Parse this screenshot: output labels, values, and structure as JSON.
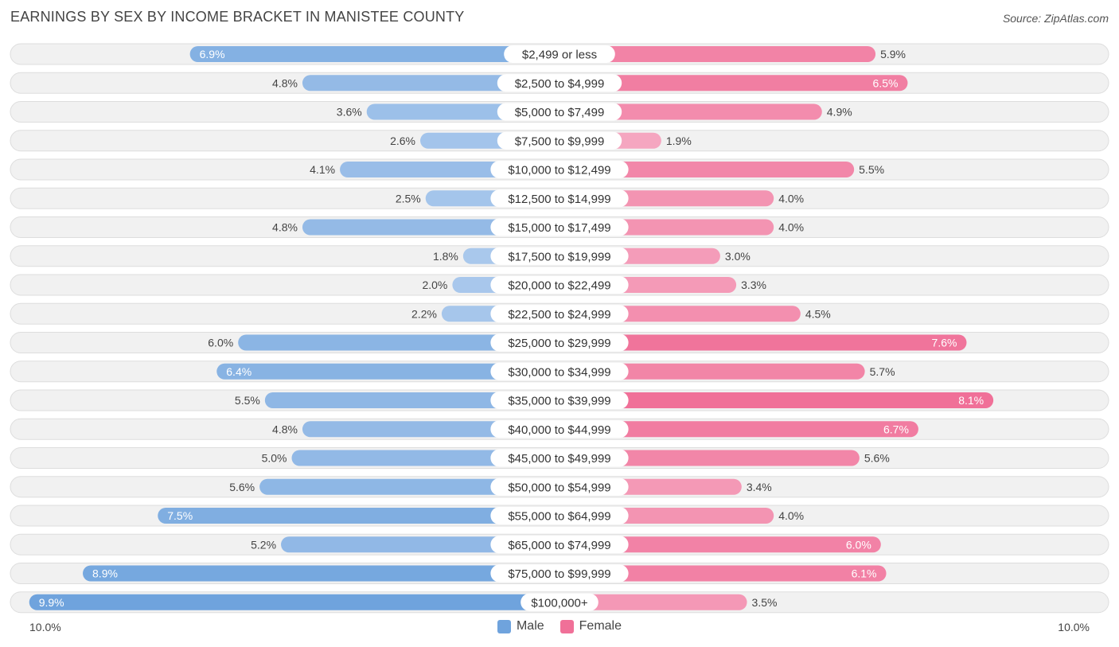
{
  "header": {
    "title": "EARNINGS BY SEX BY INCOME BRACKET IN MANISTEE COUNTY",
    "source": "Source: ZipAtlas.com"
  },
  "colors": {
    "male": "#6fa3dd",
    "male_light": "#a9c8ec",
    "female": "#f07098",
    "female_light": "#f5a6c0"
  },
  "legend": {
    "male_label": "Male",
    "female_label": "Female"
  },
  "axis": {
    "left_label": "10.0%",
    "right_label": "10.0%"
  },
  "chart_data": {
    "type": "bar",
    "orientation": "horizontal-diverging",
    "title": "EARNINGS BY SEX BY INCOME BRACKET IN MANISTEE COUNTY",
    "xlim": [
      -10,
      10
    ],
    "categories": [
      "$2,499 or less",
      "$2,500 to $4,999",
      "$5,000 to $7,499",
      "$7,500 to $9,999",
      "$10,000 to $12,499",
      "$12,500 to $14,999",
      "$15,000 to $17,499",
      "$17,500 to $19,999",
      "$20,000 to $22,499",
      "$22,500 to $24,999",
      "$25,000 to $29,999",
      "$30,000 to $34,999",
      "$35,000 to $39,999",
      "$40,000 to $44,999",
      "$45,000 to $49,999",
      "$50,000 to $54,999",
      "$55,000 to $64,999",
      "$65,000 to $74,999",
      "$75,000 to $99,999",
      "$100,000+"
    ],
    "series": [
      {
        "name": "Male",
        "values": [
          6.9,
          4.8,
          3.6,
          2.6,
          4.1,
          2.5,
          4.8,
          1.8,
          2.0,
          2.2,
          6.0,
          6.4,
          5.5,
          4.8,
          5.0,
          5.6,
          7.5,
          5.2,
          8.9,
          9.9
        ],
        "labels": [
          "6.9%",
          "4.8%",
          "3.6%",
          "2.6%",
          "4.1%",
          "2.5%",
          "4.8%",
          "1.8%",
          "2.0%",
          "2.2%",
          "6.0%",
          "6.4%",
          "5.5%",
          "4.8%",
          "5.0%",
          "5.6%",
          "7.5%",
          "5.2%",
          "8.9%",
          "9.9%"
        ]
      },
      {
        "name": "Female",
        "values": [
          5.9,
          6.5,
          4.9,
          1.9,
          5.5,
          4.0,
          4.0,
          3.0,
          3.3,
          4.5,
          7.6,
          5.7,
          8.1,
          6.7,
          5.6,
          3.4,
          4.0,
          6.0,
          6.1,
          3.5
        ],
        "labels": [
          "5.9%",
          "6.5%",
          "4.9%",
          "1.9%",
          "5.5%",
          "4.0%",
          "4.0%",
          "3.0%",
          "3.3%",
          "4.5%",
          "7.6%",
          "5.7%",
          "8.1%",
          "6.7%",
          "5.6%",
          "3.4%",
          "4.0%",
          "6.0%",
          "6.1%",
          "3.5%"
        ]
      }
    ],
    "xlabel": "",
    "ylabel": "",
    "legend_position": "bottom-center"
  }
}
